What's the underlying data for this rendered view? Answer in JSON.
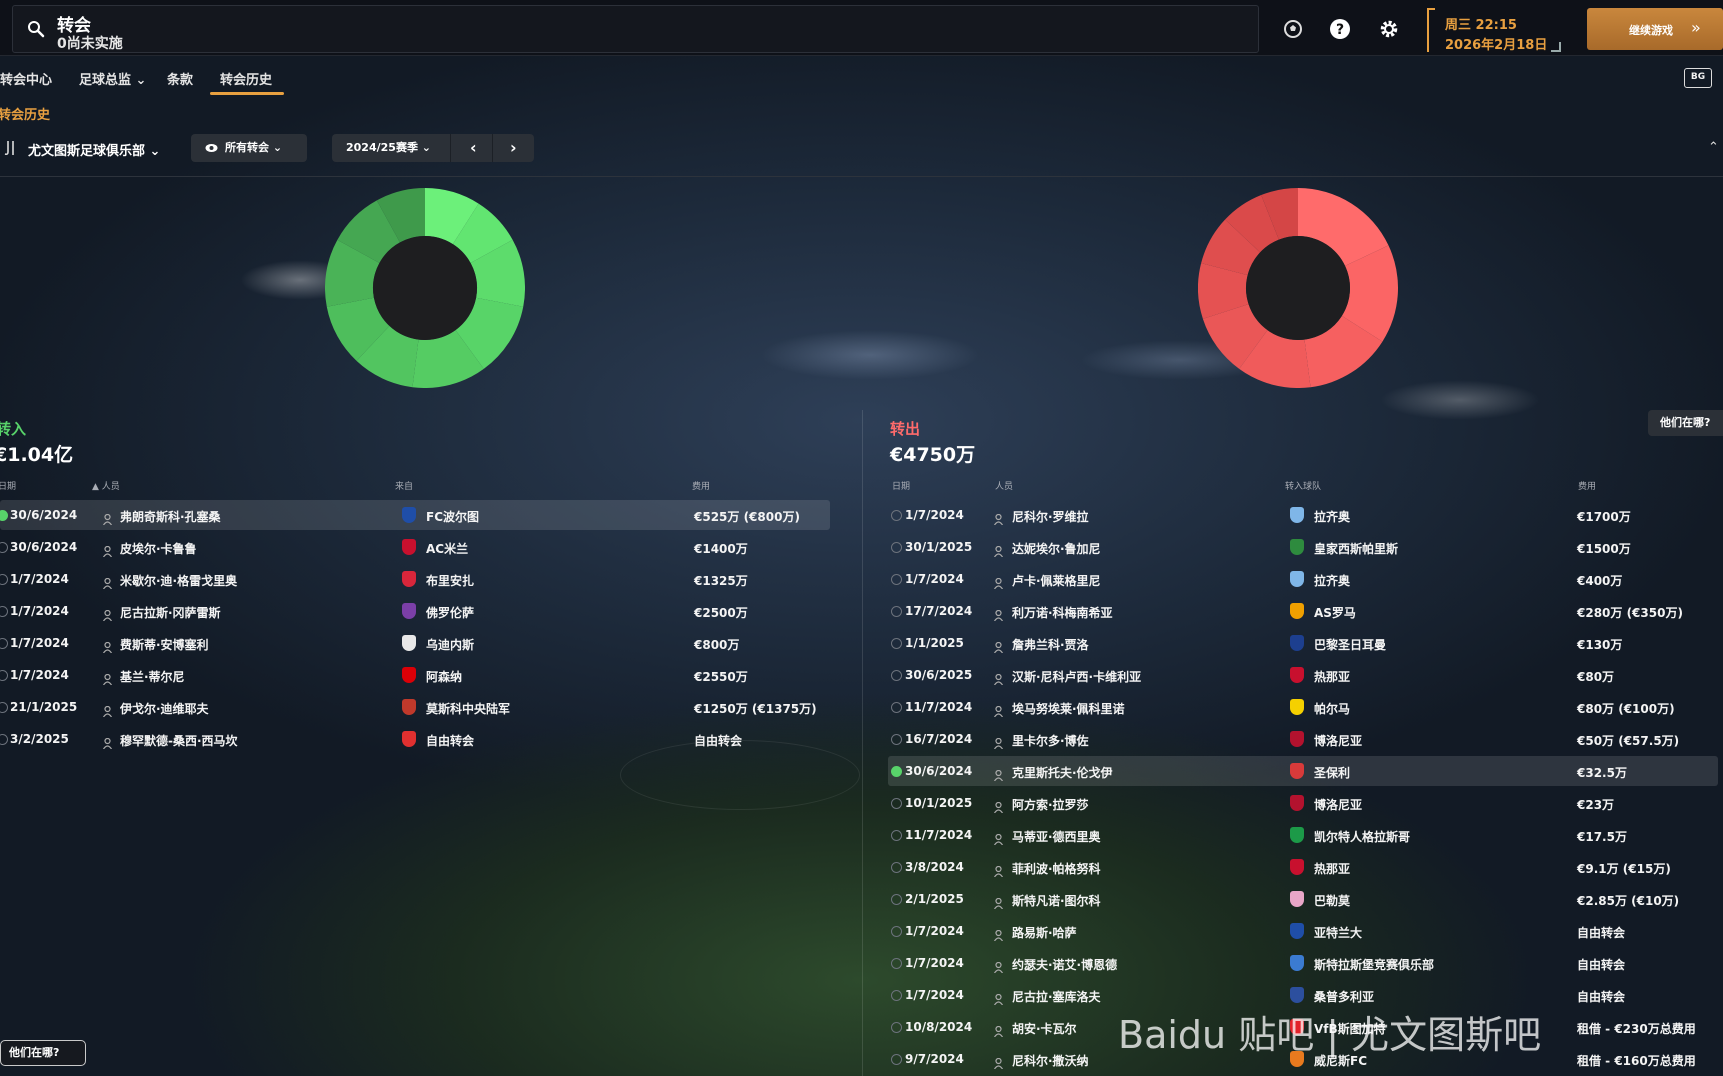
{
  "topbar": {
    "title": "转会",
    "subtitle": "0尚未实施",
    "date_line1": "周三 22:15",
    "date_line2": "2026年2月18日",
    "continue_label": "继续游戏",
    "continue_arrow": "»"
  },
  "nav": {
    "items": [
      {
        "label": "转会中心"
      },
      {
        "label": "足球总监 ⌄"
      },
      {
        "label": "条款"
      },
      {
        "label": "转会历史"
      }
    ],
    "active_index": 3,
    "right_icon_label": "BG"
  },
  "section_title": "转会历史",
  "filters": {
    "club": "尤文图斯足球俱乐部 ⌄",
    "scope": "所有转会 ⌄",
    "season": "2024/25赛季 ⌄",
    "prev": "‹",
    "next": "›",
    "collapse": "⌃"
  },
  "transfers_in": {
    "label": "转入",
    "total": "€1.04亿",
    "headers": {
      "date": "日期",
      "person": "人员",
      "from": "来自",
      "fee": "费用"
    },
    "rows": [
      {
        "date": "30/6/2024",
        "person": "弗朗奇斯科·孔塞桑",
        "club": "FC波尔图",
        "fee": "€525万 (€800万)",
        "badge": "#1f4ea8",
        "highlight": true,
        "dot": true
      },
      {
        "date": "30/6/2024",
        "person": "皮埃尔·卡鲁鲁",
        "club": "AC米兰",
        "fee": "€1400万",
        "badge": "#c8102e"
      },
      {
        "date": "1/7/2024",
        "person": "米歇尔·迪·格雷戈里奥",
        "club": "布里安扎",
        "fee": "€1325万",
        "badge": "#d8263b"
      },
      {
        "date": "1/7/2024",
        "person": "尼古拉斯·冈萨雷斯",
        "club": "佛罗伦萨",
        "fee": "€2500万",
        "badge": "#7b3fa8"
      },
      {
        "date": "1/7/2024",
        "person": "费斯蒂·安博塞利",
        "club": "乌迪内斯",
        "fee": "€800万",
        "badge": "#e8e8e8"
      },
      {
        "date": "1/7/2024",
        "person": "基兰·蒂尔尼",
        "club": "阿森纳",
        "fee": "€2550万",
        "badge": "#db0007"
      },
      {
        "date": "21/1/2025",
        "person": "伊戈尔·迪维耶夫",
        "club": "莫斯科中央陆军",
        "fee": "€1250万 (€1375万)",
        "badge": "#c0392b"
      },
      {
        "date": "3/2/2025",
        "person": "穆罕默德-桑西·西马坎",
        "club": "自由转会",
        "fee": "自由转会",
        "badge": "#e03030"
      }
    ]
  },
  "transfers_out": {
    "label": "转出",
    "total": "€4750万",
    "headers": {
      "date": "日期",
      "person": "人员",
      "to": "转入球队",
      "fee": "费用"
    },
    "where_button": "他们在哪?",
    "rows": [
      {
        "date": "1/7/2024",
        "person": "尼科尔·罗维拉",
        "club": "拉齐奥",
        "fee": "€1700万",
        "badge": "#7fb6e8"
      },
      {
        "date": "30/1/2025",
        "person": "达妮埃尔·鲁加尼",
        "club": "皇家西斯帕里斯",
        "fee": "€1500万",
        "badge": "#2e8b3e"
      },
      {
        "date": "1/7/2024",
        "person": "卢卡·佩莱格里尼",
        "club": "拉齐奥",
        "fee": "€400万",
        "badge": "#7fb6e8"
      },
      {
        "date": "17/7/2024",
        "person": "利万诺·科梅南希亚",
        "club": "AS罗马",
        "fee": "€280万 (€350万)",
        "badge": "#f0a000"
      },
      {
        "date": "1/1/2025",
        "person": "詹弗兰科·贾洛",
        "club": "巴黎圣日耳曼",
        "fee": "€130万",
        "badge": "#1d3f8f"
      },
      {
        "date": "30/6/2025",
        "person": "汉斯·尼科卢西·卡维利亚",
        "club": "热那亚",
        "fee": "€80万",
        "badge": "#c8102e"
      },
      {
        "date": "11/7/2024",
        "person": "埃马努埃莱·佩科里诺",
        "club": "帕尔马",
        "fee": "€80万 (€100万)",
        "badge": "#f5d000"
      },
      {
        "date": "16/7/2024",
        "person": "里卡尔多·博佐",
        "club": "博洛尼亚",
        "fee": "€50万 (€57.5万)",
        "badge": "#b3122e"
      },
      {
        "date": "30/6/2024",
        "person": "克里斯托夫·伦戈伊",
        "club": "圣保利",
        "fee": "€32.5万",
        "badge": "#d83a3a",
        "highlight": true,
        "dot": true
      },
      {
        "date": "10/1/2025",
        "person": "阿方索·拉罗莎",
        "club": "博洛尼亚",
        "fee": "€23万",
        "badge": "#b3122e"
      },
      {
        "date": "11/7/2024",
        "person": "马蒂亚·德西里奥",
        "club": "凯尔特人格拉斯哥",
        "fee": "€17.5万",
        "badge": "#1c9a48"
      },
      {
        "date": "3/8/2024",
        "person": "菲利波·帕格努科",
        "club": "热那亚",
        "fee": "€9.1万 (€15万)",
        "badge": "#c8102e"
      },
      {
        "date": "2/1/2025",
        "person": "斯特凡诺·图尔科",
        "club": "巴勒莫",
        "fee": "€2.85万 (€10万)",
        "badge": "#e9a6c8"
      },
      {
        "date": "1/7/2024",
        "person": "路易斯·哈萨",
        "club": "亚特兰大",
        "fee": "自由转会",
        "badge": "#1f4ea8"
      },
      {
        "date": "1/7/2024",
        "person": "约瑟夫·诺艾·博恩德",
        "club": "斯特拉斯堡竞赛俱乐部",
        "fee": "自由转会",
        "badge": "#3b7bd1"
      },
      {
        "date": "1/7/2024",
        "person": "尼古拉·塞库洛夫",
        "club": "桑普多利亚",
        "fee": "自由转会",
        "badge": "#2c4f9e"
      },
      {
        "date": "10/8/2024",
        "person": "胡安·卡瓦尔",
        "club": "VfB斯图加特",
        "fee": "租借 - €230万总费用",
        "badge": "#e2232a"
      },
      {
        "date": "9/7/2024",
        "person": "尼科尔·撒沃纳",
        "club": "威尼斯FC",
        "fee": "租借 - €160万总费用",
        "badge": "#e87a1e"
      }
    ]
  },
  "where_button_bottom": "他们在哪?",
  "donut_in": {
    "slices": [
      9,
      8,
      11,
      12,
      12,
      10,
      10,
      11,
      9,
      8
    ],
    "colors": [
      "#6cf07a",
      "#62e571",
      "#5ddc6c",
      "#58d468",
      "#55cc63",
      "#52c560",
      "#4ebe5c",
      "#4ab357",
      "#45a752",
      "#3f9a4b"
    ]
  },
  "donut_out": {
    "slices": [
      18,
      16,
      14,
      12,
      10,
      9,
      8,
      7,
      6
    ],
    "colors": [
      "#ff6b6b",
      "#fb6565",
      "#f66060",
      "#f05b5b",
      "#ea5757",
      "#e55252",
      "#df4e4e",
      "#da4a4a",
      "#d44646"
    ]
  },
  "watermark": "Baidu 贴吧 | 尤文图斯吧"
}
